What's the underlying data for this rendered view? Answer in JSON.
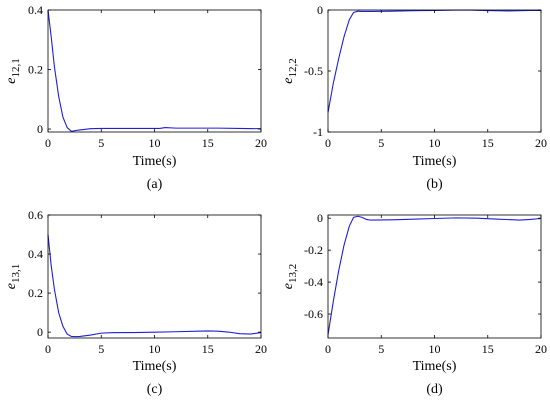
{
  "chart_data": [
    {
      "type": "line",
      "panel": "(a)",
      "ylabel_main": "e",
      "ylabel_sub": "12,1",
      "xlabel": "Time(s)",
      "caption": "(a)",
      "xlim": [
        0,
        20
      ],
      "ylim": [
        -0.01,
        0.4
      ],
      "xticks": [
        0,
        5,
        10,
        15,
        20
      ],
      "yticks": [
        0,
        0.2,
        0.4
      ],
      "ytick_labels": [
        "0",
        "0.2",
        "0.4"
      ],
      "series": [
        {
          "color": "#1f1fd6",
          "x": [
            0,
            0.3,
            0.6,
            1.0,
            1.4,
            1.8,
            2.2,
            2.6,
            3.0,
            4.0,
            5.0,
            7.0,
            9.0,
            10.5,
            11.0,
            12.0,
            14.0,
            16.0,
            18.0,
            20.0
          ],
          "y": [
            0.4,
            0.31,
            0.21,
            0.11,
            0.04,
            0.005,
            -0.008,
            -0.005,
            -0.003,
            0.001,
            0.002,
            0.002,
            0.002,
            0.002,
            0.005,
            0.003,
            0.003,
            0.003,
            0.002,
            0.001
          ]
        }
      ]
    },
    {
      "type": "line",
      "panel": "(b)",
      "ylabel_main": "e",
      "ylabel_sub": "12,2",
      "xlabel": "Time(s)",
      "caption": "(b)",
      "xlim": [
        0,
        20
      ],
      "ylim": [
        -1,
        0
      ],
      "xticks": [
        0,
        5,
        10,
        15,
        20
      ],
      "yticks": [
        -1,
        -0.5,
        0
      ],
      "ytick_labels": [
        "-1",
        "-0.5",
        "0"
      ],
      "series": [
        {
          "color": "#1f1fd6",
          "x": [
            0,
            0.5,
            1.0,
            1.5,
            2.0,
            2.4,
            2.8,
            3.2,
            4.0,
            6.0,
            8.0,
            10.0,
            12.0,
            13.0,
            15.0,
            17.0,
            19.0,
            20.0
          ],
          "y": [
            -0.84,
            -0.6,
            -0.4,
            -0.22,
            -0.08,
            -0.02,
            -0.01,
            -0.012,
            -0.012,
            -0.01,
            -0.006,
            -0.004,
            -0.001,
            0.0,
            -0.005,
            -0.008,
            -0.004,
            -0.004
          ]
        }
      ]
    },
    {
      "type": "line",
      "panel": "(c)",
      "ylabel_main": "e",
      "ylabel_sub": "13,1",
      "xlabel": "Time(s)",
      "caption": "(c)",
      "xlim": [
        0,
        20
      ],
      "ylim": [
        -0.03,
        0.6
      ],
      "xticks": [
        0,
        5,
        10,
        15,
        20
      ],
      "yticks": [
        0,
        0.2,
        0.4,
        0.6
      ],
      "ytick_labels": [
        "0",
        "0.2",
        "0.4",
        "0.6"
      ],
      "series": [
        {
          "color": "#1f1fd6",
          "x": [
            0,
            0.3,
            0.6,
            1.0,
            1.4,
            1.8,
            2.2,
            2.6,
            3.0,
            4.0,
            5.0,
            6.0,
            8.0,
            10.0,
            12.0,
            14.0,
            15.0,
            16.0,
            17.0,
            18.0,
            19.0,
            20.0
          ],
          "y": [
            0.5,
            0.34,
            0.22,
            0.1,
            0.03,
            -0.01,
            -0.022,
            -0.023,
            -0.022,
            -0.015,
            -0.005,
            -0.003,
            -0.002,
            0.0,
            0.002,
            0.005,
            0.006,
            0.005,
            0.0,
            -0.008,
            -0.01,
            -0.002
          ]
        }
      ]
    },
    {
      "type": "line",
      "panel": "(d)",
      "ylabel_main": "e",
      "ylabel_sub": "13,2",
      "xlabel": "Time(s)",
      "caption": "(d)",
      "xlim": [
        0,
        20
      ],
      "ylim": [
        -0.75,
        0.02
      ],
      "xticks": [
        0,
        5,
        10,
        15,
        20
      ],
      "yticks": [
        -0.6,
        -0.4,
        -0.2,
        0
      ],
      "ytick_labels": [
        "-0.6",
        "-0.4",
        "-0.2",
        "0"
      ],
      "series": [
        {
          "color": "#1f1fd6",
          "x": [
            0,
            0.5,
            1.0,
            1.5,
            2.0,
            2.4,
            2.8,
            3.2,
            3.6,
            4.0,
            6.0,
            8.0,
            10.0,
            12.0,
            14.0,
            16.0,
            18.0,
            19.0,
            20.0
          ],
          "y": [
            -0.73,
            -0.52,
            -0.33,
            -0.17,
            -0.05,
            0.005,
            0.012,
            0.005,
            -0.008,
            -0.012,
            -0.01,
            -0.006,
            -0.002,
            0.002,
            0.0,
            -0.006,
            -0.012,
            -0.008,
            -0.002
          ]
        }
      ]
    }
  ]
}
